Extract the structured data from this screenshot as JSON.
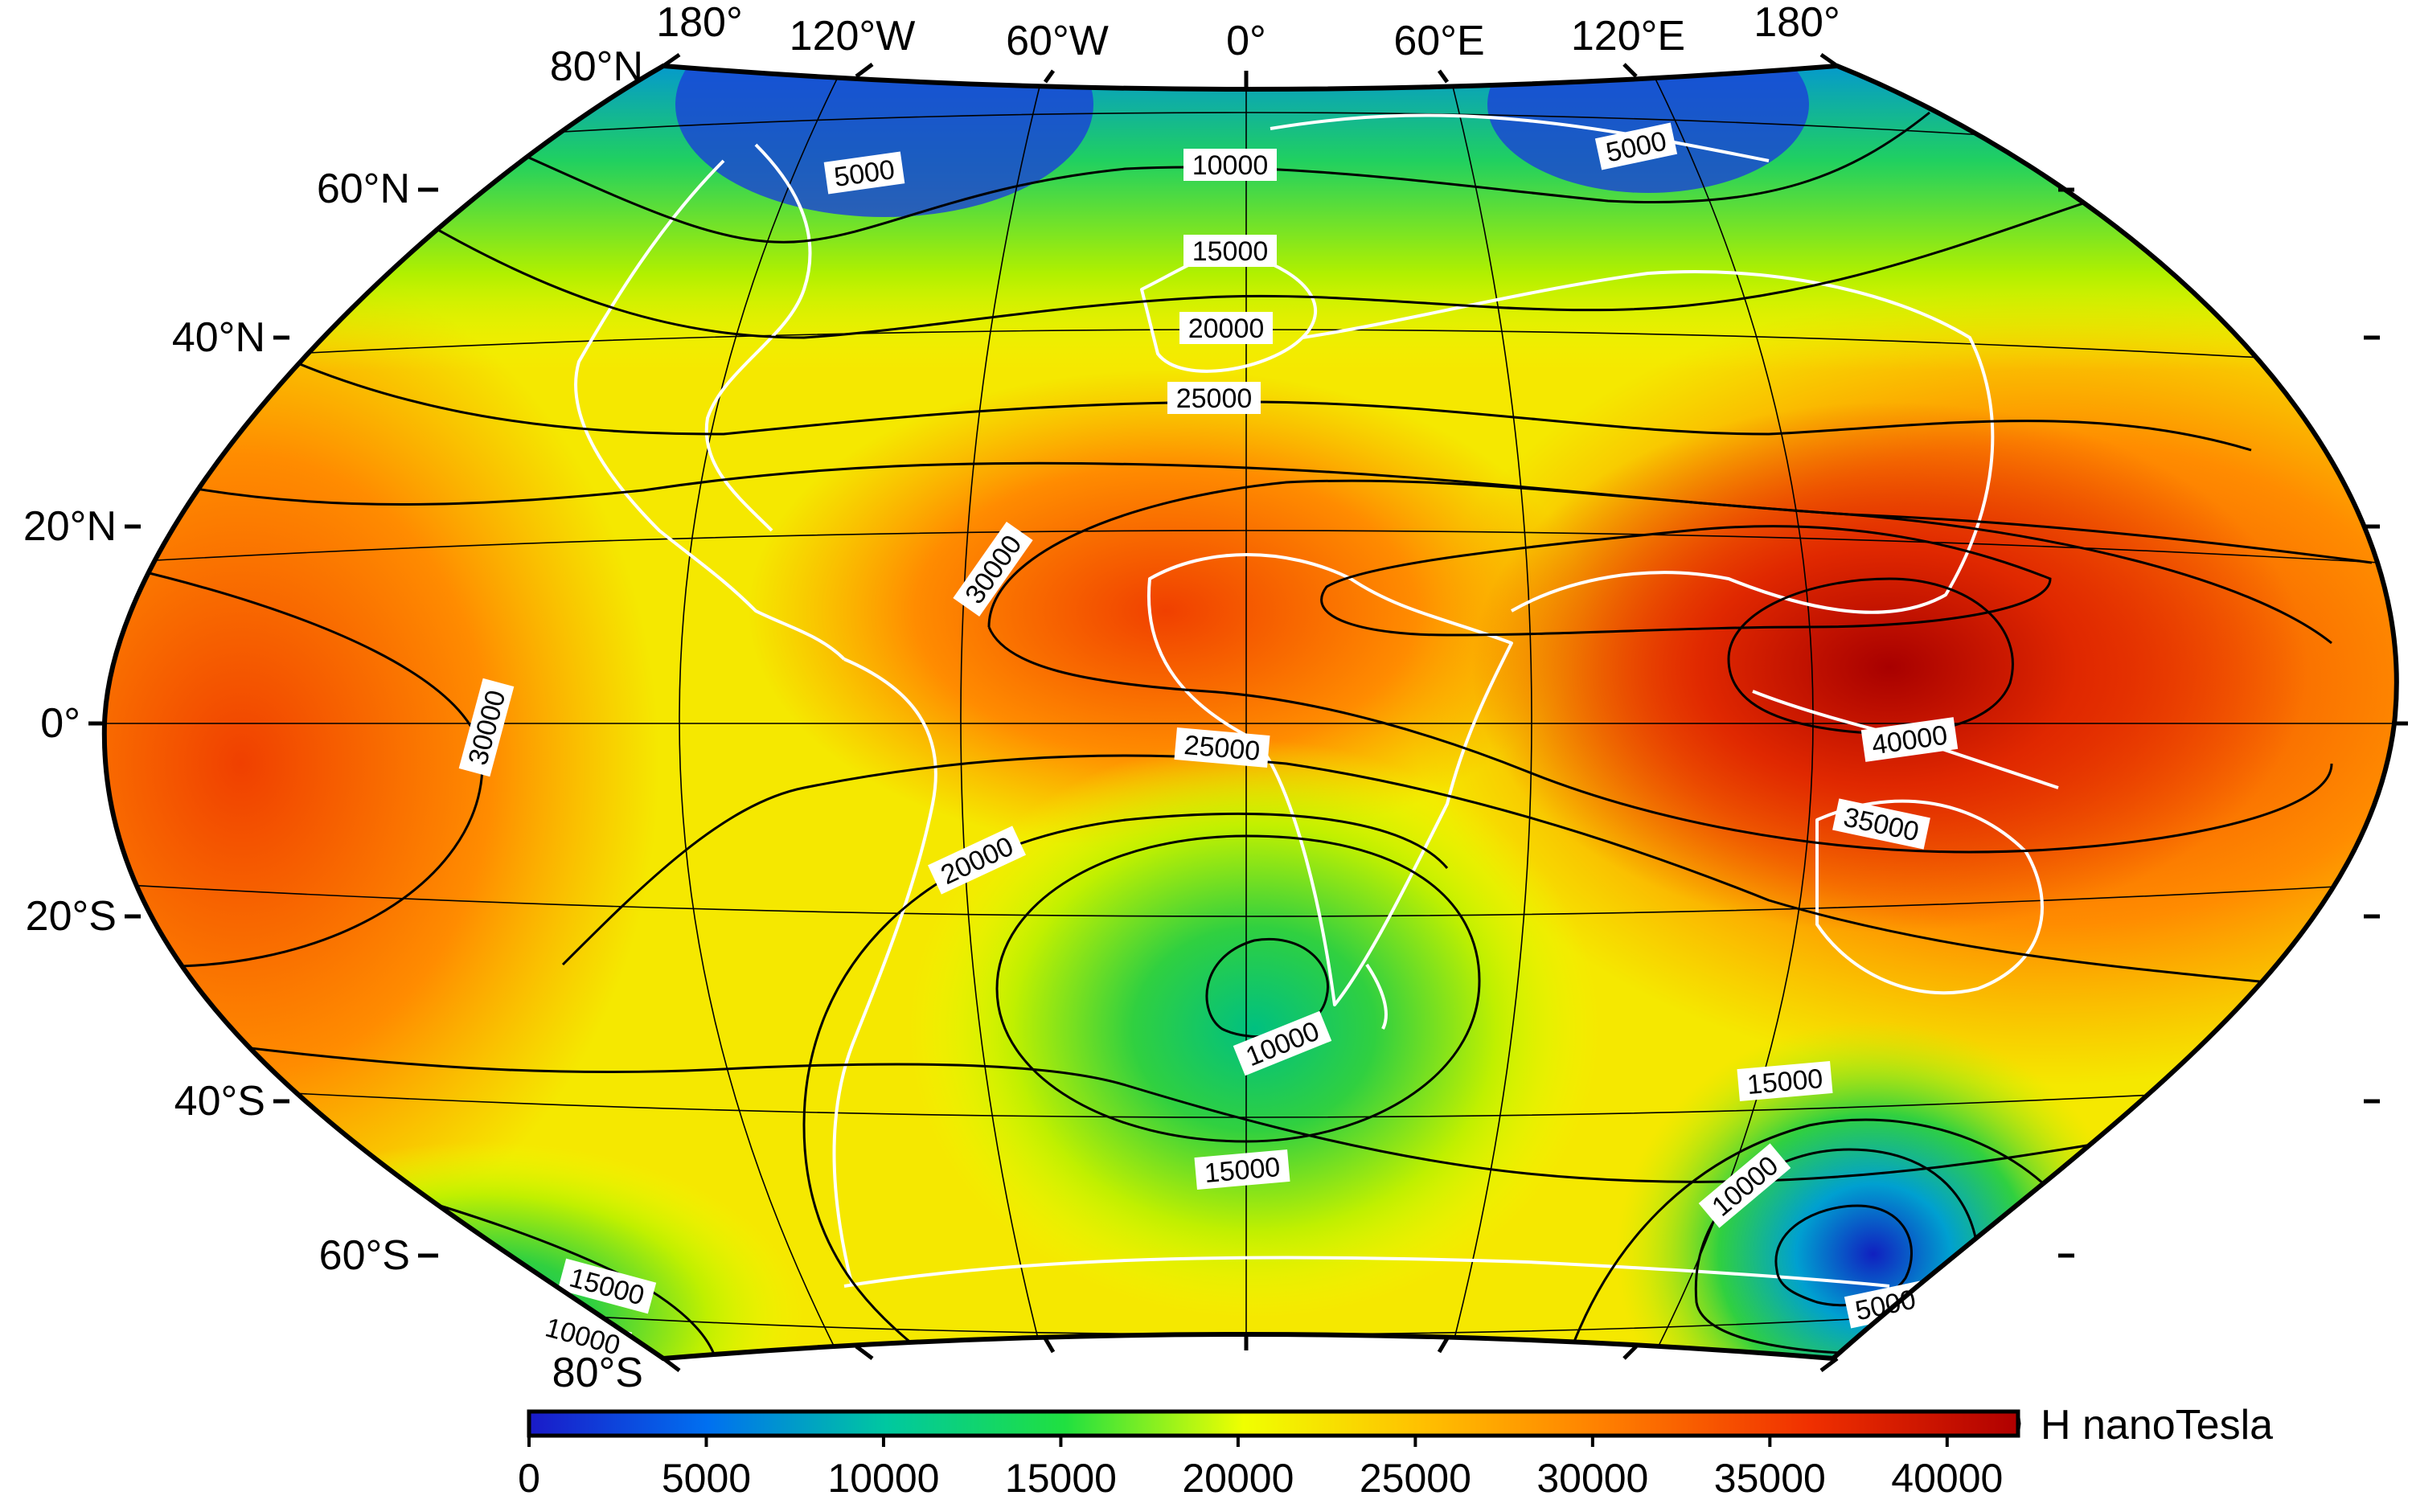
{
  "map": {
    "projection": "Winkel Tripel",
    "lon_labels_top": [
      "180°",
      "120°W",
      "60°W",
      "0°",
      "60°E",
      "120°E",
      "180°"
    ],
    "lat_labels_left": [
      "80°N",
      "60°N",
      "40°N",
      "20°N",
      "0°",
      "20°S",
      "40°S",
      "60°S",
      "80°S"
    ],
    "coastline_color": "#ffffff",
    "contour_color": "#000000",
    "contour_labels": [
      {
        "text": "5000"
      },
      {
        "text": "5000"
      },
      {
        "text": "10000"
      },
      {
        "text": "15000"
      },
      {
        "text": "20000"
      },
      {
        "text": "25000"
      },
      {
        "text": "30000"
      },
      {
        "text": "30000"
      },
      {
        "text": "40000"
      },
      {
        "text": "35000"
      },
      {
        "text": "25000"
      },
      {
        "text": "20000"
      },
      {
        "text": "10000"
      },
      {
        "text": "15000"
      },
      {
        "text": "15000"
      },
      {
        "text": "10000"
      },
      {
        "text": "5000"
      },
      {
        "text": "15000"
      },
      {
        "text": "10000"
      }
    ]
  },
  "colorbar": {
    "title": "H nanoTesla",
    "ticks": [
      "0",
      "5000",
      "10000",
      "15000",
      "20000",
      "25000",
      "30000",
      "35000",
      "40000"
    ],
    "range": [
      0,
      42000
    ],
    "colors": [
      "#1a1ac8",
      "#0070f0",
      "#00c8a0",
      "#20e040",
      "#f0ff00",
      "#ffc000",
      "#ff8000",
      "#f03000",
      "#b00000"
    ]
  }
}
